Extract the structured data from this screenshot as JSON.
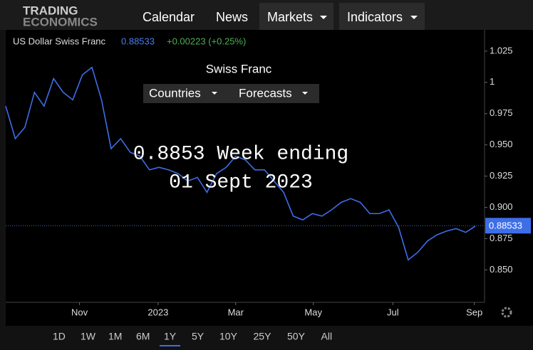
{
  "brand": [
    "TRADING",
    "ECONOMICS"
  ],
  "nav": [
    "Calendar",
    "News",
    "Markets",
    "Indicators"
  ],
  "sub_nav": [
    "Countries",
    "Forecasts"
  ],
  "range_buttons": [
    "1D",
    "1W",
    "1M",
    "6M",
    "1Y",
    "5Y",
    "10Y",
    "25Y",
    "50Y",
    "All"
  ],
  "chart_data": {
    "type": "line",
    "title": "Swiss Franc",
    "series_label": "US Dollar Swiss Franc",
    "last_value": 0.88533,
    "change": "+0.00223 (+0.25%)",
    "annotation": [
      "0.8853 Week ending",
      "01 Sept 2023"
    ],
    "series": [
      {
        "name": "US Dollar Swiss Franc",
        "color": "#3d6ee8",
        "values": [
          0.981,
          0.955,
          0.964,
          0.992,
          0.981,
          1.003,
          0.992,
          0.986,
          1.006,
          1.012,
          0.986,
          0.947,
          0.955,
          0.944,
          0.941,
          0.93,
          0.932,
          0.93,
          0.927,
          0.921,
          0.924,
          0.912,
          0.927,
          0.932,
          0.941,
          0.938,
          0.93,
          0.93,
          0.921,
          0.912,
          0.893,
          0.89,
          0.895,
          0.893,
          0.898,
          0.904,
          0.907,
          0.904,
          0.895,
          0.895,
          0.898,
          0.884,
          0.858,
          0.864,
          0.873,
          0.878,
          0.881,
          0.883,
          0.88,
          0.885
        ]
      }
    ],
    "xlim": [
      0,
      49
    ],
    "xticks": [
      {
        "value": 7.7,
        "label": "Nov"
      },
      {
        "value": 15.9,
        "label": "2023"
      },
      {
        "value": 24.0,
        "label": "Mar"
      },
      {
        "value": 32.1,
        "label": "May"
      },
      {
        "value": 40.4,
        "label": "Jul"
      },
      {
        "value": 48.9,
        "label": "Sep"
      }
    ],
    "ylim": [
      0.824,
      1.042
    ],
    "yticks": [
      {
        "value": 0.85,
        "label": "0.850"
      },
      0.875,
      {
        "value": 0.9,
        "label": "0.900"
      },
      0.925,
      {
        "value": 0.95,
        "label": "0.950"
      },
      0.975,
      1,
      1.025
    ],
    "selected_range": "1Y"
  }
}
